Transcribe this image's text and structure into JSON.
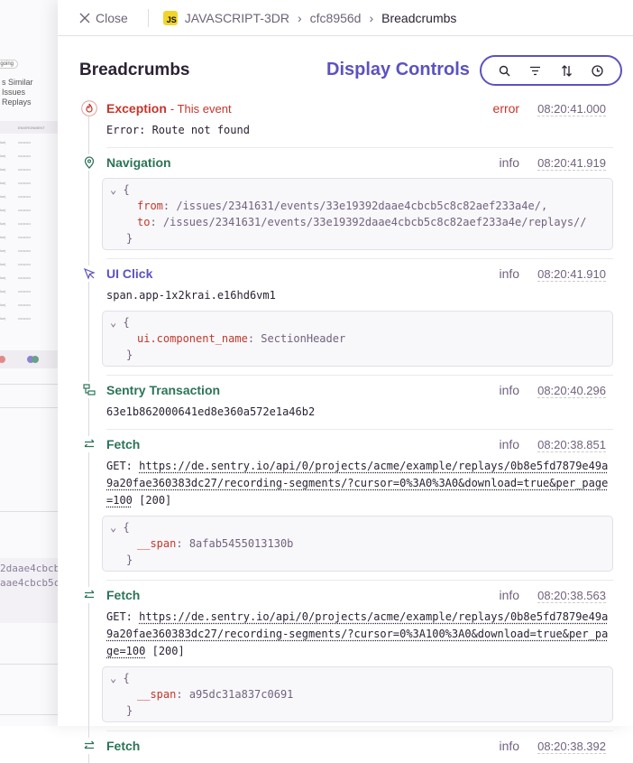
{
  "background": {
    "status_pill": "ngoing",
    "tabs": "s   Similar Issues   Replays",
    "table_header": "ENVIRONMENT",
    "code_lines": [
      "2daae4cbcb",
      "aae4cbcb5c"
    ]
  },
  "header": {
    "close_label": "Close",
    "project": "JAVASCRIPT-3DR",
    "event_id": "cfc8956d",
    "current": "Breadcrumbs",
    "platform_badge": "JS"
  },
  "title": "Breadcrumbs",
  "display_controls": {
    "label": "Display Controls",
    "buttons": [
      "search-icon",
      "filter-icon",
      "sort-icon",
      "clock-icon"
    ],
    "accent": "#5c52c0"
  },
  "breadcrumbs": [
    {
      "type": "Exception",
      "sub": "- This event",
      "level": "error",
      "time": "08:20:41.000",
      "message": "Error: Route not found",
      "color": "#c7352b"
    },
    {
      "type": "Navigation",
      "level": "info",
      "time": "08:20:41.919",
      "data": [
        [
          "from",
          "/issues/2341631/events/33e19392daae4cbcb5c8c82aef233a4e/,"
        ],
        [
          "to",
          "/issues/2341631/events/33e19392daae4cbcb5c8c82aef233a4e/replays//"
        ]
      ],
      "color": "#2c7458"
    },
    {
      "type": "UI Click",
      "level": "info",
      "time": "08:20:41.910",
      "message": "span.app-1x2krai.e16hd6vm1",
      "data": [
        [
          "ui.component_name",
          "SectionHeader"
        ]
      ],
      "color": "#5c52c0"
    },
    {
      "type": "Sentry Transaction",
      "level": "info",
      "time": "08:20:40.296",
      "message": "63e1b862000641ed8e360a572e1a46b2",
      "color": "#2c7458"
    },
    {
      "type": "Fetch",
      "level": "info",
      "time": "08:20:38.851",
      "method": "GET:",
      "url": "https://de.sentry.io/api/0/projects/acme/example/replays/0b8e5fd7879e49a9a20fae360383dc27/recording-segments/?cursor=0%3A0%3A0&download=true&per_page=100",
      "status": "[200]",
      "data": [
        [
          "__span",
          "8afab5455013130b"
        ]
      ],
      "color": "#2c7458"
    },
    {
      "type": "Fetch",
      "level": "info",
      "time": "08:20:38.563",
      "method": "GET:",
      "url": "https://de.sentry.io/api/0/projects/acme/example/replays/0b8e5fd7879e49a9a20fae360383dc27/recording-segments/?cursor=0%3A100%3A0&download=true&per_page=100",
      "status": "[200]",
      "data": [
        [
          "__span",
          "a95dc31a837c0691"
        ]
      ],
      "color": "#2c7458"
    },
    {
      "type": "Fetch",
      "level": "info",
      "time": "08:20:38.392",
      "color": "#2c7458"
    }
  ]
}
